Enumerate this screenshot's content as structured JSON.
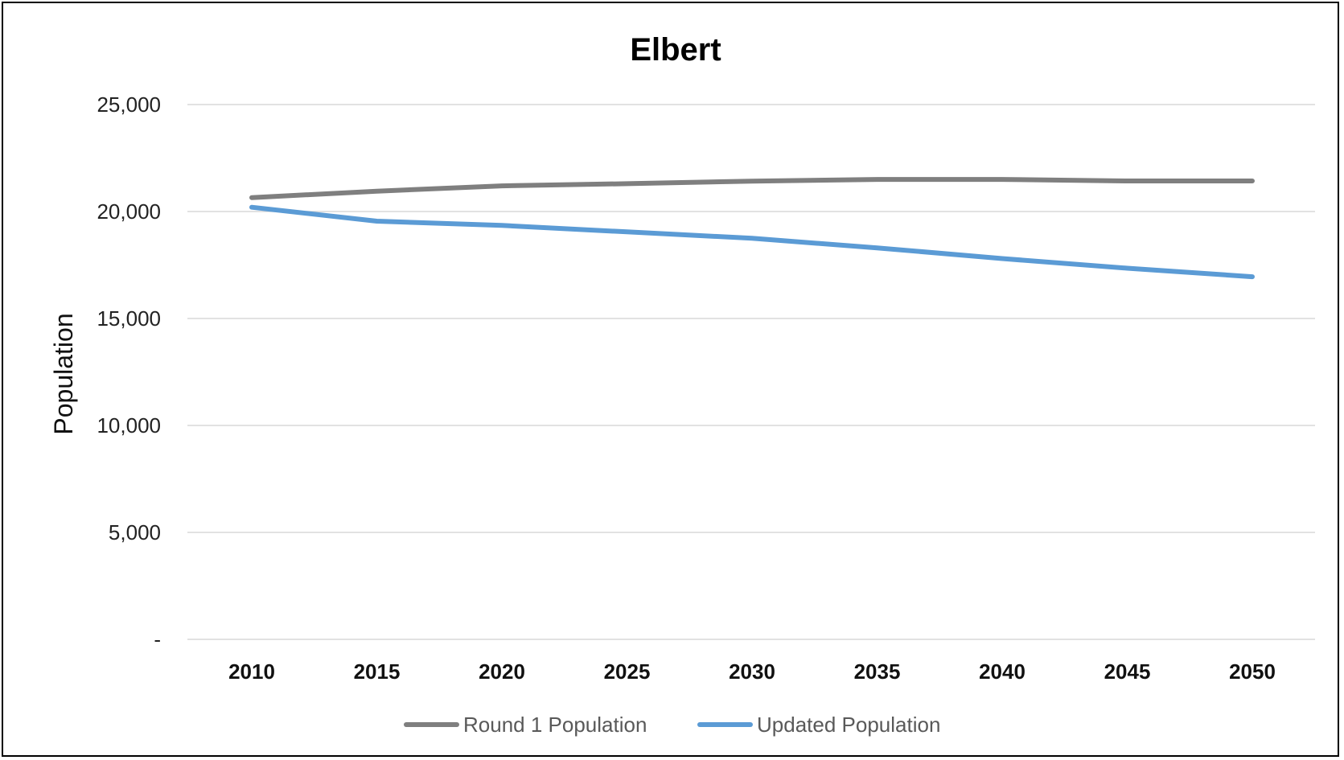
{
  "chart_data": {
    "type": "line",
    "title": "Elbert",
    "xlabel": "",
    "ylabel": "Population",
    "categories": [
      "2010",
      "2015",
      "2020",
      "2025",
      "2030",
      "2035",
      "2040",
      "2045",
      "2050"
    ],
    "y_ticks": [
      "-",
      "5,000",
      "10,000",
      "15,000",
      "20,000",
      "25,000"
    ],
    "ylim": [
      0,
      25000
    ],
    "grid": true,
    "legend_position": "bottom",
    "series": [
      {
        "name": "Round 1 Population",
        "color": "#7f7f7f",
        "values": [
          20650,
          20950,
          21200,
          21300,
          21420,
          21500,
          21500,
          21430,
          21430
        ]
      },
      {
        "name": "Updated Population",
        "color": "#5b9bd5",
        "values": [
          20200,
          19550,
          19350,
          19050,
          18750,
          18300,
          17800,
          17350,
          16950
        ]
      }
    ]
  }
}
